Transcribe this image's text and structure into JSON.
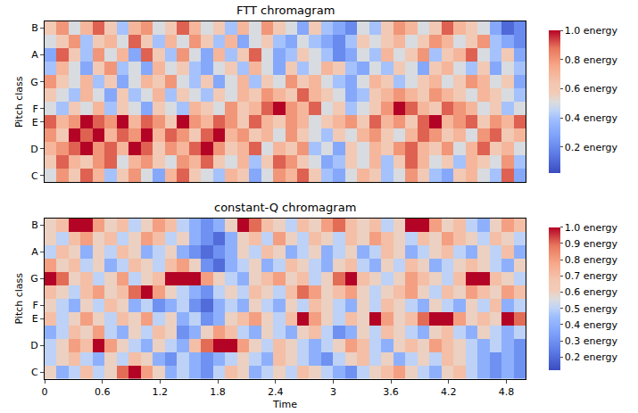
{
  "chart_data": [
    {
      "type": "heatmap",
      "title": "FTT chromagram",
      "y_label": "Pitch class",
      "categories": [
        "C",
        null,
        "D",
        null,
        "E",
        "F",
        null,
        "G",
        null,
        "A",
        null,
        "B"
      ],
      "x": [
        0,
        0.125,
        0.25,
        0.375,
        0.5,
        0.625,
        0.75,
        0.875,
        1,
        1.125,
        1.25,
        1.375,
        1.5,
        1.625,
        1.75,
        1.875,
        2,
        2.125,
        2.25,
        2.375,
        2.5,
        2.625,
        2.75,
        2.875,
        3,
        3.125,
        3.25,
        3.375,
        3.5,
        3.625,
        3.75,
        3.875,
        4,
        4.125,
        4.25,
        4.375,
        4.5,
        4.625,
        4.75,
        4.875,
        5
      ],
      "xlim": [
        0,
        5
      ],
      "tick_labels": "y",
      "z": [
        [
          0.5,
          0.8,
          0.6,
          0.9,
          0.7,
          0.4,
          0.6,
          0.8,
          0.5,
          0.3,
          0.7,
          0.9,
          0.6,
          0.5,
          0.4,
          0.7,
          0.6,
          0.3,
          0.5,
          0.8,
          0.7,
          0.9,
          0.6,
          0.4,
          0.3,
          0.5,
          0.7,
          0.6,
          0.4,
          0.5,
          0.8,
          0.6,
          0.4,
          0.3,
          0.6,
          0.7,
          0.5,
          0.4,
          0.9,
          0.3
        ],
        [
          0.6,
          0.9,
          0.7,
          0.6,
          0.8,
          0.9,
          0.5,
          0.7,
          0.8,
          0.6,
          0.5,
          0.8,
          0.7,
          0.9,
          0.6,
          0.5,
          0.7,
          0.4,
          0.6,
          0.9,
          0.8,
          0.6,
          0.5,
          0.3,
          0.4,
          0.6,
          0.5,
          0.7,
          0.4,
          0.6,
          0.9,
          0.7,
          0.5,
          0.6,
          0.4,
          0.7,
          0.6,
          0.5,
          0.8,
          0.4
        ],
        [
          0.7,
          0.8,
          0.9,
          1.0,
          0.8,
          0.9,
          0.7,
          1.0,
          0.9,
          0.6,
          0.8,
          0.7,
          0.9,
          1.0,
          0.8,
          0.6,
          0.7,
          0.9,
          0.5,
          0.7,
          0.6,
          0.8,
          0.4,
          0.5,
          0.3,
          0.6,
          0.5,
          0.7,
          0.6,
          0.8,
          0.9,
          0.7,
          0.6,
          0.8,
          0.5,
          0.7,
          0.9,
          0.6,
          0.7,
          0.5
        ],
        [
          0.8,
          0.6,
          1.0,
          0.9,
          1.0,
          0.7,
          0.9,
          0.8,
          1.0,
          0.7,
          0.9,
          0.8,
          0.6,
          0.9,
          1.0,
          0.7,
          0.8,
          0.6,
          0.7,
          0.5,
          0.8,
          0.6,
          0.5,
          0.4,
          0.6,
          0.5,
          0.7,
          0.8,
          0.6,
          0.5,
          0.7,
          0.9,
          0.8,
          0.6,
          0.7,
          0.5,
          0.8,
          0.9,
          0.6,
          0.7
        ],
        [
          0.9,
          0.7,
          0.8,
          1.0,
          0.9,
          0.8,
          1.0,
          0.7,
          0.9,
          0.8,
          0.6,
          1.0,
          0.8,
          0.7,
          0.9,
          0.8,
          0.6,
          0.9,
          0.7,
          0.6,
          0.8,
          0.7,
          0.5,
          0.6,
          0.7,
          0.8,
          0.6,
          0.9,
          0.7,
          0.8,
          0.6,
          0.9,
          1.0,
          0.7,
          0.8,
          0.9,
          0.6,
          0.8,
          0.7,
          0.9
        ],
        [
          0.5,
          0.4,
          0.6,
          0.5,
          0.7,
          0.4,
          0.6,
          0.5,
          0.3,
          0.6,
          0.5,
          0.4,
          0.7,
          0.6,
          0.5,
          0.8,
          0.6,
          0.7,
          0.9,
          1.0,
          0.8,
          0.7,
          0.9,
          0.5,
          0.6,
          0.4,
          0.5,
          0.6,
          0.8,
          1.0,
          0.9,
          0.7,
          0.6,
          0.9,
          0.8,
          0.7,
          0.5,
          0.6,
          0.4,
          0.5
        ],
        [
          0.6,
          0.5,
          0.4,
          0.7,
          0.5,
          0.3,
          0.6,
          0.4,
          0.5,
          0.7,
          0.4,
          0.6,
          0.5,
          0.4,
          0.6,
          0.5,
          0.7,
          0.6,
          0.8,
          0.7,
          0.6,
          0.9,
          0.7,
          0.6,
          0.5,
          0.3,
          0.4,
          0.6,
          0.7,
          0.8,
          0.7,
          0.6,
          0.8,
          0.7,
          0.6,
          0.5,
          0.7,
          0.6,
          0.5,
          0.4
        ],
        [
          0.8,
          0.6,
          0.5,
          0.7,
          0.4,
          0.6,
          0.3,
          0.5,
          0.7,
          0.6,
          0.8,
          0.5,
          0.4,
          0.6,
          0.3,
          0.5,
          0.7,
          0.4,
          0.6,
          0.5,
          0.8,
          0.6,
          0.7,
          0.5,
          0.4,
          0.3,
          0.5,
          0.7,
          0.6,
          0.4,
          0.5,
          0.6,
          0.7,
          0.5,
          0.6,
          0.8,
          0.7,
          0.5,
          0.6,
          0.3
        ],
        [
          0.4,
          0.7,
          0.5,
          0.3,
          0.6,
          0.8,
          0.4,
          0.5,
          0.3,
          0.7,
          0.5,
          0.6,
          0.4,
          0.3,
          0.5,
          0.6,
          0.4,
          0.7,
          0.5,
          0.3,
          0.6,
          0.4,
          0.5,
          0.7,
          0.6,
          0.4,
          0.3,
          0.5,
          0.4,
          0.6,
          0.5,
          0.3,
          0.6,
          0.7,
          0.5,
          0.4,
          0.6,
          0.3,
          0.5,
          0.4
        ],
        [
          0.3,
          0.9,
          0.6,
          0.4,
          0.8,
          0.5,
          0.7,
          0.3,
          0.9,
          0.6,
          0.4,
          0.8,
          0.5,
          0.3,
          0.7,
          0.4,
          0.6,
          0.9,
          0.5,
          0.3,
          0.4,
          0.6,
          0.5,
          0.4,
          0.2,
          0.3,
          0.5,
          0.4,
          0.7,
          0.5,
          0.6,
          0.8,
          0.4,
          0.6,
          0.7,
          0.9,
          0.5,
          0.4,
          0.6,
          0.3
        ],
        [
          0.5,
          0.6,
          0.8,
          0.4,
          0.6,
          0.7,
          0.5,
          0.9,
          0.6,
          0.4,
          0.7,
          0.5,
          0.8,
          0.6,
          0.4,
          0.7,
          0.3,
          0.5,
          0.6,
          0.4,
          0.3,
          0.5,
          0.4,
          0.3,
          0.2,
          0.4,
          0.6,
          0.5,
          0.6,
          0.7,
          0.5,
          0.6,
          0.8,
          0.7,
          0.5,
          0.6,
          0.8,
          0.4,
          0.3,
          0.2
        ],
        [
          0.6,
          0.8,
          0.5,
          0.7,
          0.9,
          0.6,
          0.4,
          0.7,
          0.8,
          0.5,
          0.6,
          0.9,
          0.7,
          0.5,
          0.6,
          0.4,
          0.7,
          0.5,
          0.8,
          0.6,
          0.5,
          0.3,
          0.6,
          0.4,
          0.3,
          0.2,
          0.5,
          0.4,
          0.6,
          0.8,
          0.7,
          0.5,
          0.6,
          0.9,
          0.7,
          0.6,
          0.5,
          0.3,
          0.1,
          0.2
        ]
      ],
      "colorbar": {
        "range": [
          0.02,
          1
        ],
        "ticks": [
          {
            "value": 0.2,
            "label": "0.2 energy"
          },
          {
            "value": 0.4,
            "label": "0.4 energy"
          },
          {
            "value": 0.6,
            "label": "0.6 energy"
          },
          {
            "value": 0.8,
            "label": "0.8 energy"
          },
          {
            "value": 1.0,
            "label": "1.0 energy"
          }
        ]
      }
    },
    {
      "type": "heatmap",
      "title": "constant-Q chromagram",
      "x_label": "Time",
      "y_label": "Pitch class",
      "categories": [
        "C",
        null,
        "D",
        null,
        "E",
        "F",
        null,
        "G",
        null,
        "A",
        null,
        "B"
      ],
      "x": [
        0,
        0.125,
        0.25,
        0.375,
        0.5,
        0.625,
        0.75,
        0.875,
        1,
        1.125,
        1.25,
        1.375,
        1.5,
        1.625,
        1.75,
        1.875,
        2,
        2.125,
        2.25,
        2.375,
        2.5,
        2.625,
        2.75,
        2.875,
        3,
        3.125,
        3.25,
        3.375,
        3.5,
        3.625,
        3.75,
        3.875,
        4,
        4.125,
        4.25,
        4.375,
        4.5,
        4.625,
        4.75,
        4.875,
        5
      ],
      "xlim": [
        0,
        5
      ],
      "xticks": [
        0,
        0.6,
        1.2,
        1.8,
        2.4,
        3,
        3.6,
        4.2,
        4.8
      ],
      "z": [
        [
          0.6,
          0.4,
          0.5,
          0.7,
          0.5,
          0.6,
          0.9,
          1.0,
          0.8,
          0.6,
          0.4,
          0.5,
          0.4,
          0.3,
          0.5,
          0.7,
          0.6,
          0.4,
          0.5,
          0.6,
          0.5,
          0.7,
          0.6,
          0.5,
          0.4,
          0.3,
          0.5,
          0.6,
          0.7,
          0.8,
          0.6,
          0.5,
          0.4,
          0.6,
          0.7,
          0.5,
          0.4,
          0.3,
          0.4,
          0.3
        ],
        [
          0.5,
          0.6,
          0.7,
          0.5,
          0.4,
          0.6,
          0.5,
          0.7,
          0.6,
          0.4,
          0.3,
          0.5,
          0.4,
          0.3,
          0.4,
          0.5,
          0.6,
          0.5,
          0.4,
          0.7,
          0.6,
          0.5,
          0.4,
          0.3,
          0.5,
          0.6,
          0.7,
          0.5,
          0.6,
          0.4,
          0.5,
          0.6,
          0.5,
          0.7,
          0.6,
          0.5,
          0.4,
          0.3,
          0.4,
          0.3
        ],
        [
          0.5,
          0.6,
          0.8,
          0.7,
          1.0,
          0.8,
          0.6,
          0.5,
          0.4,
          0.6,
          0.5,
          0.4,
          0.7,
          0.9,
          1.0,
          1.0,
          0.8,
          0.6,
          0.5,
          0.7,
          0.6,
          0.5,
          0.4,
          0.5,
          0.6,
          0.8,
          0.7,
          0.5,
          0.4,
          0.6,
          0.7,
          0.6,
          0.8,
          0.7,
          0.6,
          0.5,
          0.4,
          0.5,
          0.4,
          0.3
        ],
        [
          0.4,
          0.5,
          0.7,
          0.6,
          0.8,
          0.5,
          0.4,
          0.6,
          0.5,
          0.7,
          0.6,
          0.3,
          0.4,
          0.6,
          0.8,
          0.7,
          0.5,
          0.4,
          0.6,
          0.5,
          0.4,
          0.6,
          0.7,
          0.5,
          0.3,
          0.4,
          0.6,
          0.5,
          0.7,
          0.6,
          0.5,
          0.4,
          0.6,
          0.7,
          0.5,
          0.4,
          0.6,
          0.5,
          0.4,
          0.5
        ],
        [
          0.7,
          0.5,
          0.6,
          0.8,
          0.6,
          0.5,
          0.7,
          0.6,
          0.8,
          0.5,
          0.6,
          0.4,
          0.5,
          0.3,
          0.4,
          0.6,
          0.7,
          0.8,
          0.6,
          0.5,
          0.7,
          1.0,
          0.8,
          0.6,
          0.5,
          0.7,
          0.6,
          1.0,
          0.8,
          0.6,
          0.7,
          0.9,
          1.0,
          1.0,
          0.8,
          0.6,
          0.7,
          0.6,
          1.0,
          0.9
        ],
        [
          0.6,
          0.5,
          0.4,
          0.6,
          0.5,
          0.7,
          0.6,
          0.4,
          0.5,
          0.3,
          0.4,
          0.5,
          0.3,
          0.2,
          0.4,
          0.5,
          0.4,
          0.6,
          0.5,
          0.4,
          0.6,
          0.5,
          0.7,
          0.6,
          0.5,
          0.4,
          0.6,
          0.5,
          0.7,
          0.6,
          0.5,
          0.4,
          0.6,
          0.5,
          0.4,
          0.6,
          0.5,
          0.7,
          0.4,
          0.5
        ],
        [
          0.7,
          0.6,
          0.5,
          0.7,
          0.8,
          0.6,
          0.7,
          0.9,
          1.0,
          0.8,
          0.6,
          0.5,
          0.4,
          0.3,
          0.5,
          0.6,
          0.5,
          0.7,
          0.6,
          0.5,
          0.7,
          0.9,
          0.8,
          0.6,
          0.7,
          0.8,
          0.6,
          0.5,
          0.6,
          0.7,
          0.8,
          0.6,
          0.5,
          0.7,
          0.6,
          0.8,
          0.7,
          0.6,
          0.8,
          0.7
        ],
        [
          1.0,
          0.9,
          0.6,
          0.7,
          0.5,
          0.6,
          0.8,
          0.5,
          0.6,
          0.7,
          1.0,
          1.0,
          1.0,
          0.8,
          0.6,
          0.5,
          0.4,
          0.6,
          0.7,
          0.8,
          0.6,
          0.7,
          0.5,
          0.6,
          0.9,
          1.0,
          0.7,
          0.6,
          0.5,
          0.6,
          0.8,
          0.7,
          0.6,
          0.5,
          0.7,
          1.0,
          1.0,
          0.7,
          0.6,
          0.5
        ],
        [
          0.8,
          0.6,
          0.7,
          0.5,
          0.6,
          0.4,
          0.5,
          0.7,
          0.6,
          0.5,
          0.7,
          0.8,
          0.6,
          0.3,
          0.2,
          0.4,
          0.5,
          0.6,
          0.4,
          0.5,
          0.7,
          0.6,
          0.5,
          0.4,
          0.6,
          0.7,
          0.5,
          0.4,
          0.6,
          0.5,
          0.7,
          0.6,
          0.4,
          0.5,
          0.6,
          0.7,
          0.6,
          0.5,
          0.4,
          0.6
        ],
        [
          0.5,
          0.7,
          0.6,
          0.4,
          0.6,
          0.5,
          0.7,
          0.6,
          0.4,
          0.5,
          0.6,
          0.4,
          0.3,
          0.2,
          0.3,
          0.4,
          0.6,
          0.5,
          0.7,
          0.6,
          0.4,
          0.5,
          0.6,
          0.4,
          0.5,
          0.6,
          0.4,
          0.5,
          0.7,
          0.6,
          0.4,
          0.5,
          0.6,
          0.7,
          0.5,
          0.4,
          0.6,
          0.5,
          0.7,
          0.4
        ],
        [
          0.6,
          0.5,
          0.7,
          0.8,
          0.6,
          0.7,
          0.5,
          0.6,
          0.8,
          0.7,
          0.5,
          0.6,
          0.4,
          0.3,
          0.2,
          0.4,
          0.6,
          0.7,
          0.5,
          0.8,
          0.6,
          0.5,
          0.7,
          0.6,
          0.5,
          0.7,
          0.6,
          0.8,
          0.7,
          0.6,
          0.5,
          0.7,
          0.6,
          0.8,
          0.7,
          0.6,
          0.5,
          0.7,
          0.6,
          0.5
        ],
        [
          0.6,
          0.7,
          1.0,
          1.0,
          0.8,
          0.6,
          0.7,
          0.5,
          0.6,
          0.8,
          0.7,
          0.5,
          0.4,
          0.3,
          0.4,
          0.6,
          1.0,
          0.9,
          0.7,
          0.6,
          0.5,
          0.7,
          0.6,
          0.8,
          0.9,
          0.7,
          0.6,
          0.7,
          0.5,
          0.6,
          1.0,
          1.0,
          0.8,
          0.6,
          0.7,
          0.5,
          0.4,
          0.6,
          0.8,
          0.7
        ]
      ],
      "colorbar": {
        "range": [
          0.12,
          1
        ],
        "ticks": [
          {
            "value": 0.2,
            "label": "0.2 energy"
          },
          {
            "value": 0.3,
            "label": "0.3 energy"
          },
          {
            "value": 0.4,
            "label": "0.4 energy"
          },
          {
            "value": 0.5,
            "label": "0.5 energy"
          },
          {
            "value": 0.6,
            "label": "0.6 energy"
          },
          {
            "value": 0.7,
            "label": "0.7 energy"
          },
          {
            "value": 0.8,
            "label": "0.8 energy"
          },
          {
            "value": 0.9,
            "label": "0.9 energy"
          },
          {
            "value": 1.0,
            "label": "1.0 energy"
          }
        ]
      }
    }
  ]
}
